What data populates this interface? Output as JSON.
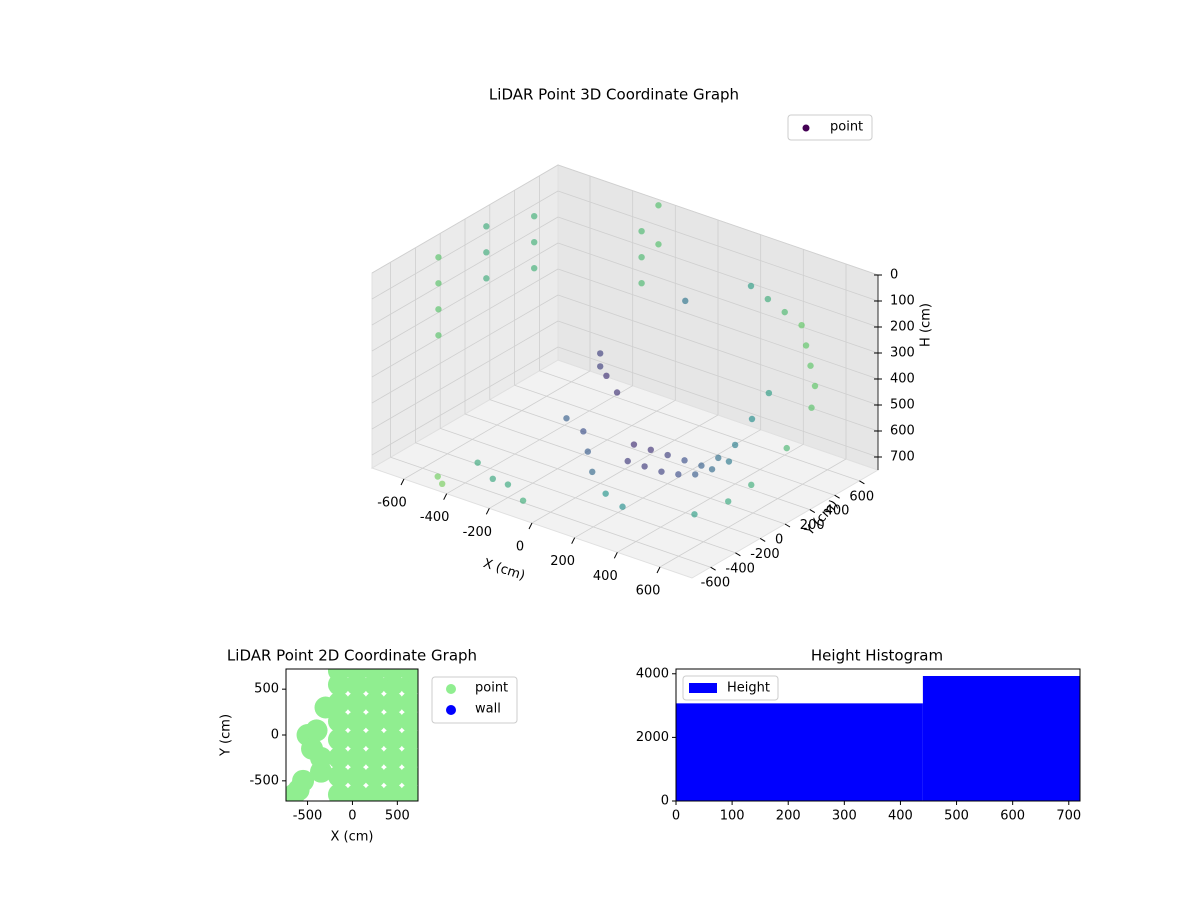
{
  "chart_data": [
    {
      "type": "scatter3d",
      "title": "LiDAR Point 3D Coordinate Graph",
      "xlabel": "X (cm)",
      "ylabel": "Y (cm)",
      "zlabel": "H (cm)",
      "xlim": [
        -750,
        750
      ],
      "ylim": [
        -750,
        750
      ],
      "zlim": [
        0,
        750
      ],
      "z_inverted": true,
      "xticks": [
        -600,
        -400,
        -200,
        0,
        200,
        400,
        600
      ],
      "yticks": [
        -600,
        -400,
        -200,
        0,
        200,
        400,
        600
      ],
      "zticks": [
        0,
        100,
        200,
        300,
        400,
        500,
        600,
        700
      ],
      "grid": true,
      "colormap": "viridis",
      "legend": "upper right",
      "series": [
        {
          "name": "point",
          "color": "#440154",
          "x": [
            -700,
            -700,
            -700,
            -700,
            -650,
            -650,
            -650,
            -600,
            -600,
            -600,
            -300,
            -300,
            -300,
            -250,
            -250,
            0,
            0,
            0,
            50,
            100,
            150,
            200,
            250,
            300,
            350,
            400,
            450,
            500,
            100,
            150,
            200,
            250,
            300,
            350,
            400,
            -100,
            -50,
            0,
            50,
            300,
            350,
            400,
            450,
            500,
            550,
            600,
            -400,
            -300,
            -200,
            -100,
            500,
            600,
            650,
            700,
            700,
            200,
            250,
            -500,
            -450,
            50
          ],
          "y": [
            -300,
            -300,
            -300,
            -300,
            0,
            0,
            0,
            300,
            300,
            300,
            650,
            650,
            650,
            700,
            700,
            -200,
            -200,
            -150,
            -150,
            -100,
            -50,
            0,
            50,
            100,
            150,
            200,
            250,
            300,
            -150,
            -100,
            -50,
            0,
            50,
            100,
            150,
            -300,
            -250,
            -300,
            -350,
            500,
            550,
            600,
            650,
            600,
            550,
            500,
            -500,
            -550,
            -600,
            -650,
            -300,
            -200,
            -100,
            100,
            300,
            -500,
            -450,
            -650,
            -700,
            400
          ],
          "z": [
            50,
            150,
            250,
            350,
            0,
            100,
            200,
            30,
            130,
            230,
            100,
            200,
            300,
            0,
            150,
            250,
            300,
            350,
            400,
            600,
            620,
            640,
            660,
            680,
            650,
            600,
            500,
            400,
            650,
            670,
            690,
            700,
            700,
            680,
            650,
            500,
            550,
            600,
            650,
            100,
            150,
            200,
            250,
            300,
            350,
            400,
            700,
            720,
            700,
            720,
            700,
            650,
            600,
            500,
            400,
            650,
            700,
            740,
            740,
            200
          ]
        }
      ]
    },
    {
      "type": "scatter",
      "title": "LiDAR Point 2D Coordinate Graph",
      "xlabel": "X (cm)",
      "ylabel": "Y (cm)",
      "xlim": [
        -740,
        730
      ],
      "ylim": [
        -720,
        720
      ],
      "xticks": [
        -500,
        0,
        500
      ],
      "yticks": [
        -500,
        0,
        500
      ],
      "legend": "outside upper right",
      "series": [
        {
          "name": "point",
          "color": "#90ee90",
          "x": [
            -150,
            -150,
            -150,
            -150,
            -150,
            -150,
            -150,
            -150,
            50,
            50,
            50,
            50,
            50,
            50,
            50,
            50,
            250,
            250,
            250,
            250,
            250,
            250,
            250,
            250,
            450,
            450,
            450,
            450,
            450,
            450,
            450,
            450,
            650,
            650,
            650,
            650,
            650,
            650,
            650,
            650,
            -650,
            -550,
            -500,
            -450,
            -350,
            -600,
            -400,
            -300,
            -350
          ],
          "y": [
            -650,
            -450,
            -250,
            -50,
            150,
            350,
            550,
            700,
            -650,
            -450,
            -250,
            -50,
            150,
            350,
            550,
            700,
            -650,
            -450,
            -250,
            -50,
            150,
            350,
            550,
            700,
            -650,
            -450,
            -250,
            -50,
            150,
            350,
            550,
            700,
            -650,
            -450,
            -250,
            -50,
            150,
            350,
            550,
            700,
            -650,
            -500,
            0,
            -150,
            -400,
            -600,
            50,
            300,
            -250
          ]
        },
        {
          "name": "wall",
          "color": "#0000ff",
          "x": [],
          "y": []
        }
      ]
    },
    {
      "type": "histogram",
      "title": "Height Histogram",
      "bins": [
        0,
        440,
        720
      ],
      "xlim": [
        0,
        720
      ],
      "ylim": [
        0,
        4150
      ],
      "xticks": [
        0,
        100,
        200,
        300,
        400,
        500,
        600,
        700
      ],
      "yticks": [
        0,
        2000,
        4000
      ],
      "legend": "upper left",
      "series": [
        {
          "name": "Height",
          "color": "#0000ff",
          "values": [
            3070,
            3930
          ]
        }
      ]
    }
  ]
}
